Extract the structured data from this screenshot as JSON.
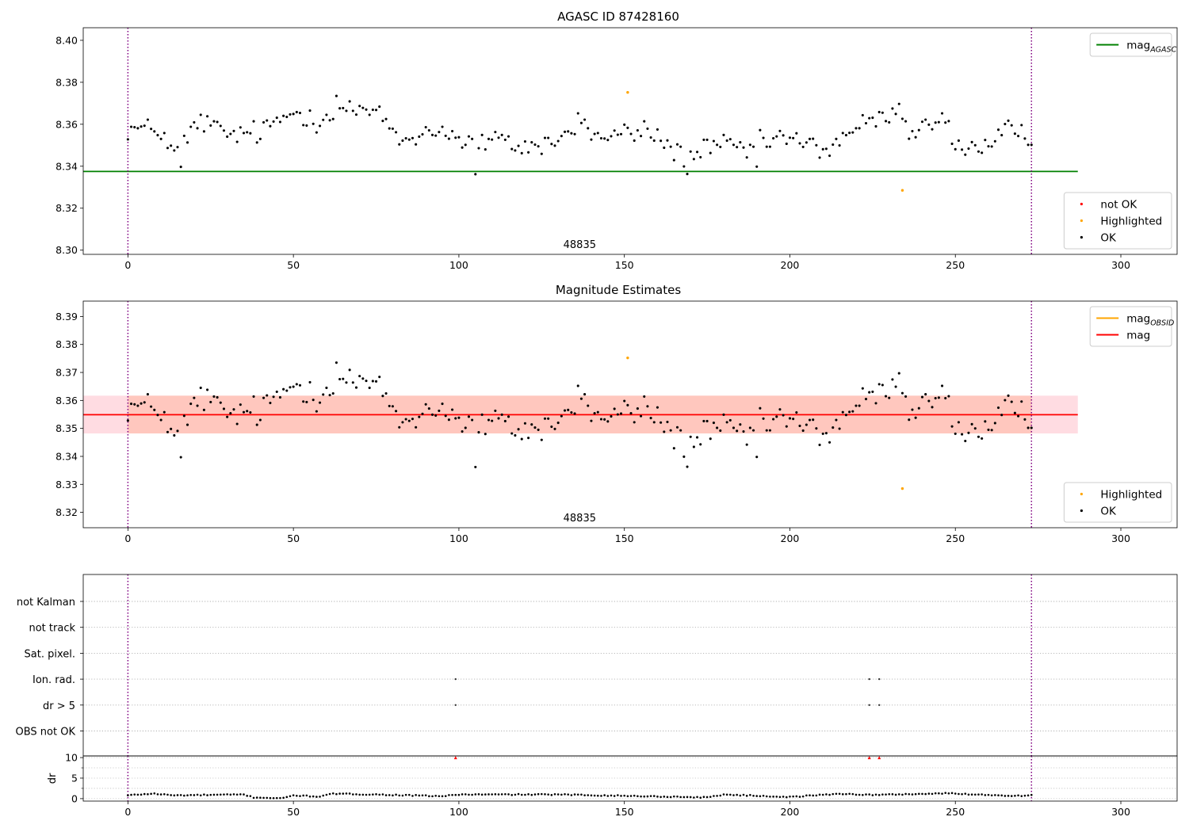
{
  "figure": {
    "width": 1500,
    "height": 1050
  },
  "chart_data": [
    {
      "type": "scatter",
      "title": "AGASC ID 87428160",
      "xlim": [
        -13.5,
        317
      ],
      "ylim": [
        8.298,
        8.406
      ],
      "xticks": [
        0,
        50,
        100,
        150,
        200,
        250,
        300
      ],
      "yticks": [
        8.3,
        8.32,
        8.34,
        8.36,
        8.38,
        8.4
      ],
      "ytick_decimals": 2,
      "obsid_label": {
        "text": "48835",
        "x": 136.5
      },
      "obsid_bounds": [
        0,
        273
      ],
      "reference_lines": [
        {
          "name": "mag_AGASC",
          "label_main": "mag",
          "label_sub": "AGASC",
          "y": 8.3375,
          "x": [
            -13.5,
            287
          ],
          "color": "#008000"
        }
      ],
      "series": [
        {
          "name": "not OK",
          "color": "#ff0000",
          "points": []
        },
        {
          "name": "Highlighted",
          "color": "#ffa500",
          "points": [
            [
              151,
              8.3752
            ],
            [
              234,
              8.3285
            ]
          ]
        },
        {
          "name": "OK",
          "color": "#000000",
          "points": []
        }
      ],
      "ok_profile": {
        "x_start": 0,
        "x_end": 273,
        "count": 274,
        "anchors": [
          [
            0,
            8.358
          ],
          [
            10,
            8.357
          ],
          [
            14,
            8.345
          ],
          [
            22,
            8.362
          ],
          [
            30,
            8.355
          ],
          [
            40,
            8.356
          ],
          [
            50,
            8.366
          ],
          [
            58,
            8.362
          ],
          [
            63,
            8.368
          ],
          [
            72,
            8.366
          ],
          [
            78,
            8.362
          ],
          [
            82,
            8.352
          ],
          [
            90,
            8.356
          ],
          [
            96,
            8.358
          ],
          [
            100,
            8.352
          ],
          [
            105,
            8.351
          ],
          [
            112,
            8.352
          ],
          [
            120,
            8.349
          ],
          [
            130,
            8.352
          ],
          [
            137,
            8.362
          ],
          [
            142,
            8.353
          ],
          [
            148,
            8.355
          ],
          [
            157,
            8.357
          ],
          [
            162,
            8.351
          ],
          [
            168,
            8.345
          ],
          [
            175,
            8.348
          ],
          [
            182,
            8.35
          ],
          [
            188,
            8.347
          ],
          [
            193,
            8.352
          ],
          [
            198,
            8.354
          ],
          [
            205,
            8.35
          ],
          [
            212,
            8.348
          ],
          [
            218,
            8.357
          ],
          [
            225,
            8.361
          ],
          [
            231,
            8.364
          ],
          [
            236,
            8.356
          ],
          [
            242,
            8.362
          ],
          [
            246,
            8.363
          ],
          [
            250,
            8.35
          ],
          [
            260,
            8.348
          ],
          [
            266,
            8.357
          ],
          [
            273,
            8.352
          ]
        ],
        "noise": 0.004,
        "outliers": [
          [
            16,
            8.3397
          ],
          [
            63,
            8.3735
          ],
          [
            105,
            8.3362
          ],
          [
            169,
            8.3363
          ],
          [
            190,
            8.3398
          ],
          [
            233,
            8.3697
          ]
        ]
      },
      "legends": [
        {
          "position": "top-right",
          "entries": [
            {
              "kind": "line",
              "label_main": "mag",
              "label_sub": "AGASC",
              "color": "#008000"
            }
          ]
        },
        {
          "position": "bottom-right",
          "entries": [
            {
              "kind": "marker",
              "label_main": "not OK",
              "color": "#ff0000"
            },
            {
              "kind": "marker",
              "label_main": "Highlighted",
              "color": "#ffa500"
            },
            {
              "kind": "marker",
              "label_main": "OK",
              "color": "#000000"
            }
          ]
        }
      ]
    },
    {
      "type": "scatter",
      "title": "Magnitude Estimates",
      "xlim": [
        -13.5,
        317
      ],
      "ylim": [
        8.3145,
        8.3955
      ],
      "xticks": [
        0,
        50,
        100,
        150,
        200,
        250,
        300
      ],
      "yticks": [
        8.32,
        8.33,
        8.34,
        8.35,
        8.36,
        8.37,
        8.38,
        8.39
      ],
      "ytick_decimals": 2,
      "obsid_label": {
        "text": "48835",
        "x": 136.5
      },
      "obsid_bounds": [
        0,
        273
      ],
      "bands": [
        {
          "y": [
            8.3482,
            8.3617
          ],
          "x": [
            -13.5,
            287
          ],
          "color": "#ffc0cb",
          "opacity": 0.55
        },
        {
          "y": [
            8.3482,
            8.3617
          ],
          "x": [
            0,
            273
          ],
          "color": "#ffa07a",
          "opacity": 0.35
        }
      ],
      "reference_lines": [
        {
          "name": "mag",
          "label_main": "mag",
          "y": 8.3549,
          "x": [
            -13.5,
            287
          ],
          "color": "#ff0000"
        }
      ],
      "series": [
        {
          "name": "Highlighted",
          "color": "#ffa500",
          "points": [
            [
              151,
              8.3752
            ],
            [
              234,
              8.3285
            ]
          ]
        },
        {
          "name": "OK",
          "color": "#000000",
          "points": []
        }
      ],
      "ok_profile": {
        "x_start": 0,
        "x_end": 273,
        "count": 274,
        "anchors": [
          [
            0,
            8.358
          ],
          [
            10,
            8.357
          ],
          [
            14,
            8.345
          ],
          [
            22,
            8.362
          ],
          [
            30,
            8.355
          ],
          [
            40,
            8.356
          ],
          [
            50,
            8.366
          ],
          [
            58,
            8.362
          ],
          [
            63,
            8.368
          ],
          [
            72,
            8.366
          ],
          [
            78,
            8.362
          ],
          [
            82,
            8.352
          ],
          [
            90,
            8.356
          ],
          [
            96,
            8.358
          ],
          [
            100,
            8.352
          ],
          [
            105,
            8.351
          ],
          [
            112,
            8.352
          ],
          [
            120,
            8.349
          ],
          [
            130,
            8.352
          ],
          [
            137,
            8.362
          ],
          [
            142,
            8.353
          ],
          [
            148,
            8.355
          ],
          [
            157,
            8.357
          ],
          [
            162,
            8.351
          ],
          [
            168,
            8.345
          ],
          [
            175,
            8.348
          ],
          [
            182,
            8.35
          ],
          [
            188,
            8.347
          ],
          [
            193,
            8.352
          ],
          [
            198,
            8.354
          ],
          [
            205,
            8.35
          ],
          [
            212,
            8.348
          ],
          [
            218,
            8.357
          ],
          [
            225,
            8.361
          ],
          [
            231,
            8.364
          ],
          [
            236,
            8.356
          ],
          [
            242,
            8.362
          ],
          [
            246,
            8.363
          ],
          [
            250,
            8.35
          ],
          [
            260,
            8.348
          ],
          [
            266,
            8.357
          ],
          [
            273,
            8.352
          ]
        ],
        "noise": 0.004,
        "outliers": [
          [
            16,
            8.3397
          ],
          [
            63,
            8.3735
          ],
          [
            105,
            8.3362
          ],
          [
            169,
            8.3363
          ],
          [
            190,
            8.3398
          ],
          [
            233,
            8.3697
          ]
        ]
      },
      "legends": [
        {
          "position": "top-right",
          "entries": [
            {
              "kind": "line",
              "label_main": "mag",
              "label_sub": "OBSID",
              "color": "#ffa500"
            },
            {
              "kind": "line",
              "label_main": "mag",
              "color": "#ff0000"
            }
          ]
        },
        {
          "position": "bottom-right",
          "entries": [
            {
              "kind": "marker",
              "label_main": "Highlighted",
              "color": "#ffa500"
            },
            {
              "kind": "marker",
              "label_main": "OK",
              "color": "#000000"
            }
          ]
        }
      ]
    },
    {
      "type": "scatter",
      "title": "",
      "xlim": [
        -13.5,
        317
      ],
      "flag_rows": [
        "not Kalman",
        "not track",
        "Sat. pixel.",
        "Ion. rad.",
        "dr > 5",
        "OBS not OK"
      ],
      "flag_points": [
        {
          "row": "Ion. rad.",
          "x": [
            99,
            224,
            227
          ]
        },
        {
          "row": "dr > 5",
          "x": [
            99,
            224,
            227
          ]
        }
      ],
      "obsid_bounds": [
        0,
        273
      ]
    },
    {
      "type": "scatter",
      "ylabel": "dr",
      "xlim": [
        -13.5,
        317
      ],
      "ylim": [
        -0.6,
        10.4
      ],
      "xticks": [
        0,
        50,
        100,
        150,
        200,
        250,
        300
      ],
      "yticks": [
        0,
        5,
        10
      ],
      "ytick_decimals": 0,
      "obsid_bounds": [
        0,
        273
      ],
      "clipped_points": {
        "x": [
          99,
          224,
          227
        ],
        "color": "#ff0000"
      },
      "dr_profile": {
        "x_start": 0,
        "x_end": 273,
        "anchors": [
          [
            0,
            0.8
          ],
          [
            5,
            1.1
          ],
          [
            8,
            1.2
          ],
          [
            14,
            0.8
          ],
          [
            35,
            1.0
          ],
          [
            38,
            0.3
          ],
          [
            47,
            0.1
          ],
          [
            50,
            0.8
          ],
          [
            58,
            0.5
          ],
          [
            62,
            1.2
          ],
          [
            75,
            1.0
          ],
          [
            95,
            0.6
          ],
          [
            100,
            1.0
          ],
          [
            130,
            1.0
          ],
          [
            175,
            0.3
          ],
          [
            180,
            1.0
          ],
          [
            200,
            0.4
          ],
          [
            215,
            1.2
          ],
          [
            225,
            0.9
          ],
          [
            248,
            1.3
          ],
          [
            260,
            0.9
          ],
          [
            268,
            0.7
          ],
          [
            273,
            0.8
          ]
        ]
      }
    }
  ]
}
